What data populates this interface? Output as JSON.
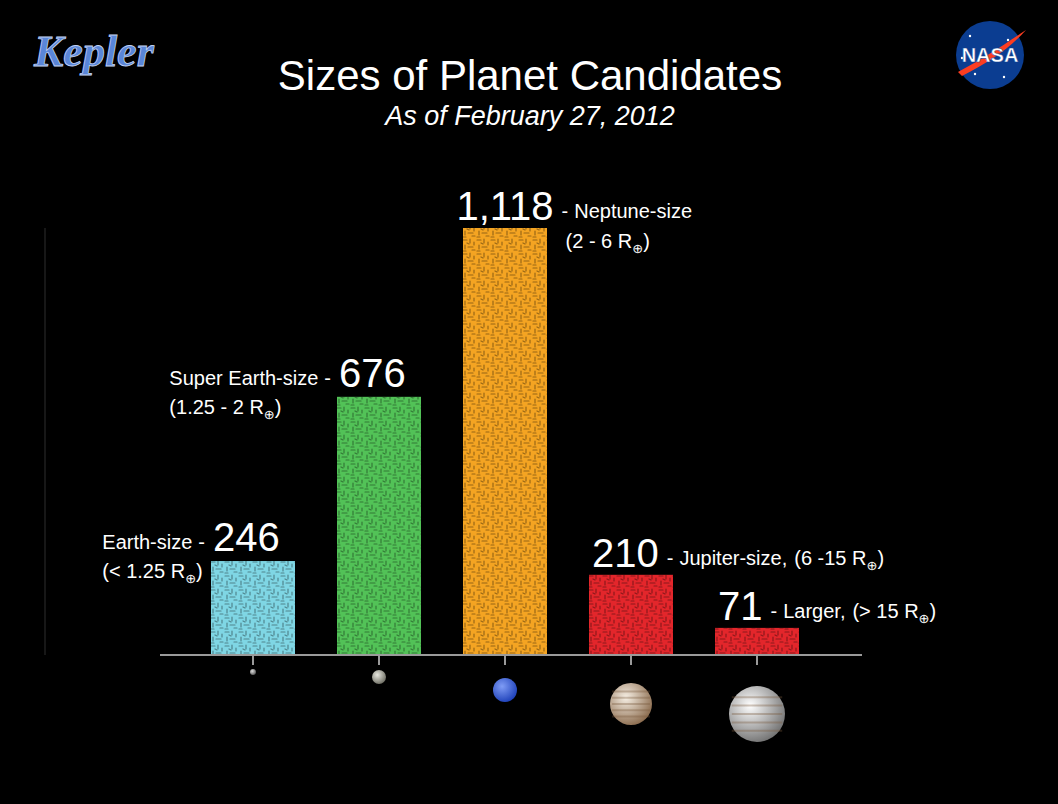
{
  "chart_data": {
    "type": "bar",
    "title": "Sizes of Planet Candidates",
    "subtitle": "As of February 27, 2012",
    "categories": [
      "Earth-size",
      "Super Earth-size",
      "Neptune-size",
      "Jupiter-size,",
      "Larger,"
    ],
    "size_ranges": [
      "(< 1.25 R⊕)",
      "(1.25 - 2 R⊕)",
      "(2 - 6 R⊕)",
      "(6 -15 R⊕)",
      "(> 15 R⊕)"
    ],
    "label_separator": "-",
    "values": [
      246,
      676,
      1118,
      210,
      71
    ],
    "value_labels": [
      "246",
      "676",
      "1,118",
      "210",
      "71"
    ],
    "colors": [
      "#7fd6e4",
      "#52c257",
      "#f4a422",
      "#e3262b",
      "#e3262b"
    ],
    "ylim": [
      0,
      1118
    ],
    "yticks": [],
    "tick_labels": false,
    "data_labels": true,
    "grid": false
  },
  "logos": {
    "left": "Kepler",
    "right": "NASA"
  }
}
